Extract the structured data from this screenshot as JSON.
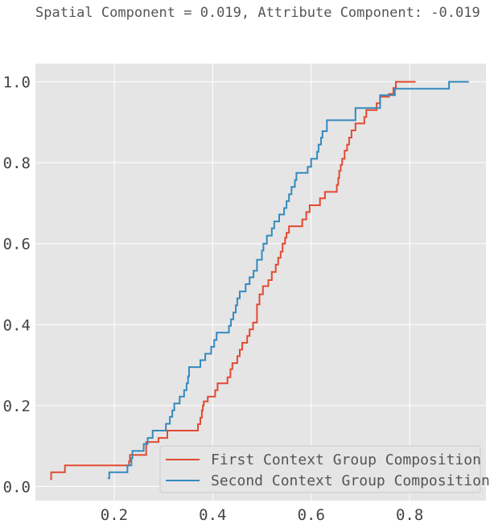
{
  "chart_data": {
    "type": "line",
    "title": "Spatial Component = 0.019, Attribute Component: -0.019",
    "xlabel": "",
    "ylabel": "",
    "xlim": [
      0.04,
      0.955
    ],
    "ylim": [
      -0.035,
      1.045
    ],
    "grid": true,
    "legend_position": "bottom-right",
    "x_ticks": [
      {
        "value": 0.2,
        "label": "0.2"
      },
      {
        "value": 0.4,
        "label": "0.4"
      },
      {
        "value": 0.6,
        "label": "0.6"
      },
      {
        "value": 0.8,
        "label": "0.8"
      }
    ],
    "y_ticks": [
      {
        "value": 0.0,
        "label": "0.0"
      },
      {
        "value": 0.2,
        "label": "0.2"
      },
      {
        "value": 0.4,
        "label": "0.4"
      },
      {
        "value": 0.6,
        "label": "0.6"
      },
      {
        "value": 0.8,
        "label": "0.8"
      },
      {
        "value": 1.0,
        "label": "1.0"
      }
    ],
    "series": [
      {
        "name": "First Context Group Composition",
        "color": "#E24A33",
        "step": "post",
        "points": [
          [
            0.07,
            0.018
          ],
          [
            0.072,
            0.035
          ],
          [
            0.1,
            0.052
          ],
          [
            0.23,
            0.062
          ],
          [
            0.232,
            0.078
          ],
          [
            0.265,
            0.11
          ],
          [
            0.29,
            0.12
          ],
          [
            0.308,
            0.138
          ],
          [
            0.37,
            0.154
          ],
          [
            0.375,
            0.17
          ],
          [
            0.378,
            0.188
          ],
          [
            0.38,
            0.2
          ],
          [
            0.382,
            0.21
          ],
          [
            0.39,
            0.222
          ],
          [
            0.405,
            0.238
          ],
          [
            0.41,
            0.255
          ],
          [
            0.43,
            0.27
          ],
          [
            0.436,
            0.29
          ],
          [
            0.44,
            0.305
          ],
          [
            0.45,
            0.322
          ],
          [
            0.455,
            0.338
          ],
          [
            0.46,
            0.355
          ],
          [
            0.47,
            0.372
          ],
          [
            0.475,
            0.388
          ],
          [
            0.482,
            0.405
          ],
          [
            0.49,
            0.45
          ],
          [
            0.495,
            0.475
          ],
          [
            0.502,
            0.495
          ],
          [
            0.513,
            0.51
          ],
          [
            0.52,
            0.53
          ],
          [
            0.528,
            0.548
          ],
          [
            0.533,
            0.565
          ],
          [
            0.538,
            0.58
          ],
          [
            0.542,
            0.6
          ],
          [
            0.547,
            0.615
          ],
          [
            0.55,
            0.627
          ],
          [
            0.555,
            0.643
          ],
          [
            0.582,
            0.66
          ],
          [
            0.59,
            0.678
          ],
          [
            0.597,
            0.695
          ],
          [
            0.618,
            0.712
          ],
          [
            0.628,
            0.728
          ],
          [
            0.652,
            0.745
          ],
          [
            0.655,
            0.762
          ],
          [
            0.657,
            0.78
          ],
          [
            0.66,
            0.795
          ],
          [
            0.663,
            0.81
          ],
          [
            0.668,
            0.83
          ],
          [
            0.673,
            0.845
          ],
          [
            0.677,
            0.862
          ],
          [
            0.682,
            0.88
          ],
          [
            0.69,
            0.897
          ],
          [
            0.708,
            0.913
          ],
          [
            0.712,
            0.93
          ],
          [
            0.733,
            0.947
          ],
          [
            0.74,
            0.963
          ],
          [
            0.758,
            0.97
          ],
          [
            0.767,
            0.985
          ],
          [
            0.772,
            1.0
          ],
          [
            0.812,
            1.0
          ]
        ]
      },
      {
        "name": "Second Context Group Composition",
        "color": "#348ABD",
        "step": "post",
        "points": [
          [
            0.187,
            0.02
          ],
          [
            0.19,
            0.035
          ],
          [
            0.227,
            0.052
          ],
          [
            0.235,
            0.07
          ],
          [
            0.237,
            0.088
          ],
          [
            0.26,
            0.105
          ],
          [
            0.268,
            0.12
          ],
          [
            0.278,
            0.138
          ],
          [
            0.305,
            0.155
          ],
          [
            0.313,
            0.172
          ],
          [
            0.318,
            0.188
          ],
          [
            0.322,
            0.205
          ],
          [
            0.333,
            0.222
          ],
          [
            0.342,
            0.238
          ],
          [
            0.347,
            0.255
          ],
          [
            0.35,
            0.272
          ],
          [
            0.352,
            0.295
          ],
          [
            0.375,
            0.312
          ],
          [
            0.385,
            0.328
          ],
          [
            0.397,
            0.345
          ],
          [
            0.403,
            0.362
          ],
          [
            0.408,
            0.38
          ],
          [
            0.433,
            0.397
          ],
          [
            0.437,
            0.413
          ],
          [
            0.442,
            0.43
          ],
          [
            0.447,
            0.448
          ],
          [
            0.45,
            0.465
          ],
          [
            0.455,
            0.482
          ],
          [
            0.467,
            0.5
          ],
          [
            0.475,
            0.517
          ],
          [
            0.483,
            0.533
          ],
          [
            0.49,
            0.56
          ],
          [
            0.5,
            0.583
          ],
          [
            0.503,
            0.6
          ],
          [
            0.51,
            0.62
          ],
          [
            0.52,
            0.638
          ],
          [
            0.525,
            0.655
          ],
          [
            0.535,
            0.672
          ],
          [
            0.545,
            0.688
          ],
          [
            0.55,
            0.705
          ],
          [
            0.555,
            0.722
          ],
          [
            0.56,
            0.74
          ],
          [
            0.567,
            0.757
          ],
          [
            0.57,
            0.775
          ],
          [
            0.593,
            0.79
          ],
          [
            0.6,
            0.81
          ],
          [
            0.612,
            0.827
          ],
          [
            0.615,
            0.845
          ],
          [
            0.62,
            0.862
          ],
          [
            0.623,
            0.878
          ],
          [
            0.632,
            0.905
          ],
          [
            0.69,
            0.935
          ],
          [
            0.74,
            0.967
          ],
          [
            0.77,
            0.983
          ],
          [
            0.88,
            1.0
          ],
          [
            0.92,
            1.0
          ]
        ]
      }
    ]
  }
}
